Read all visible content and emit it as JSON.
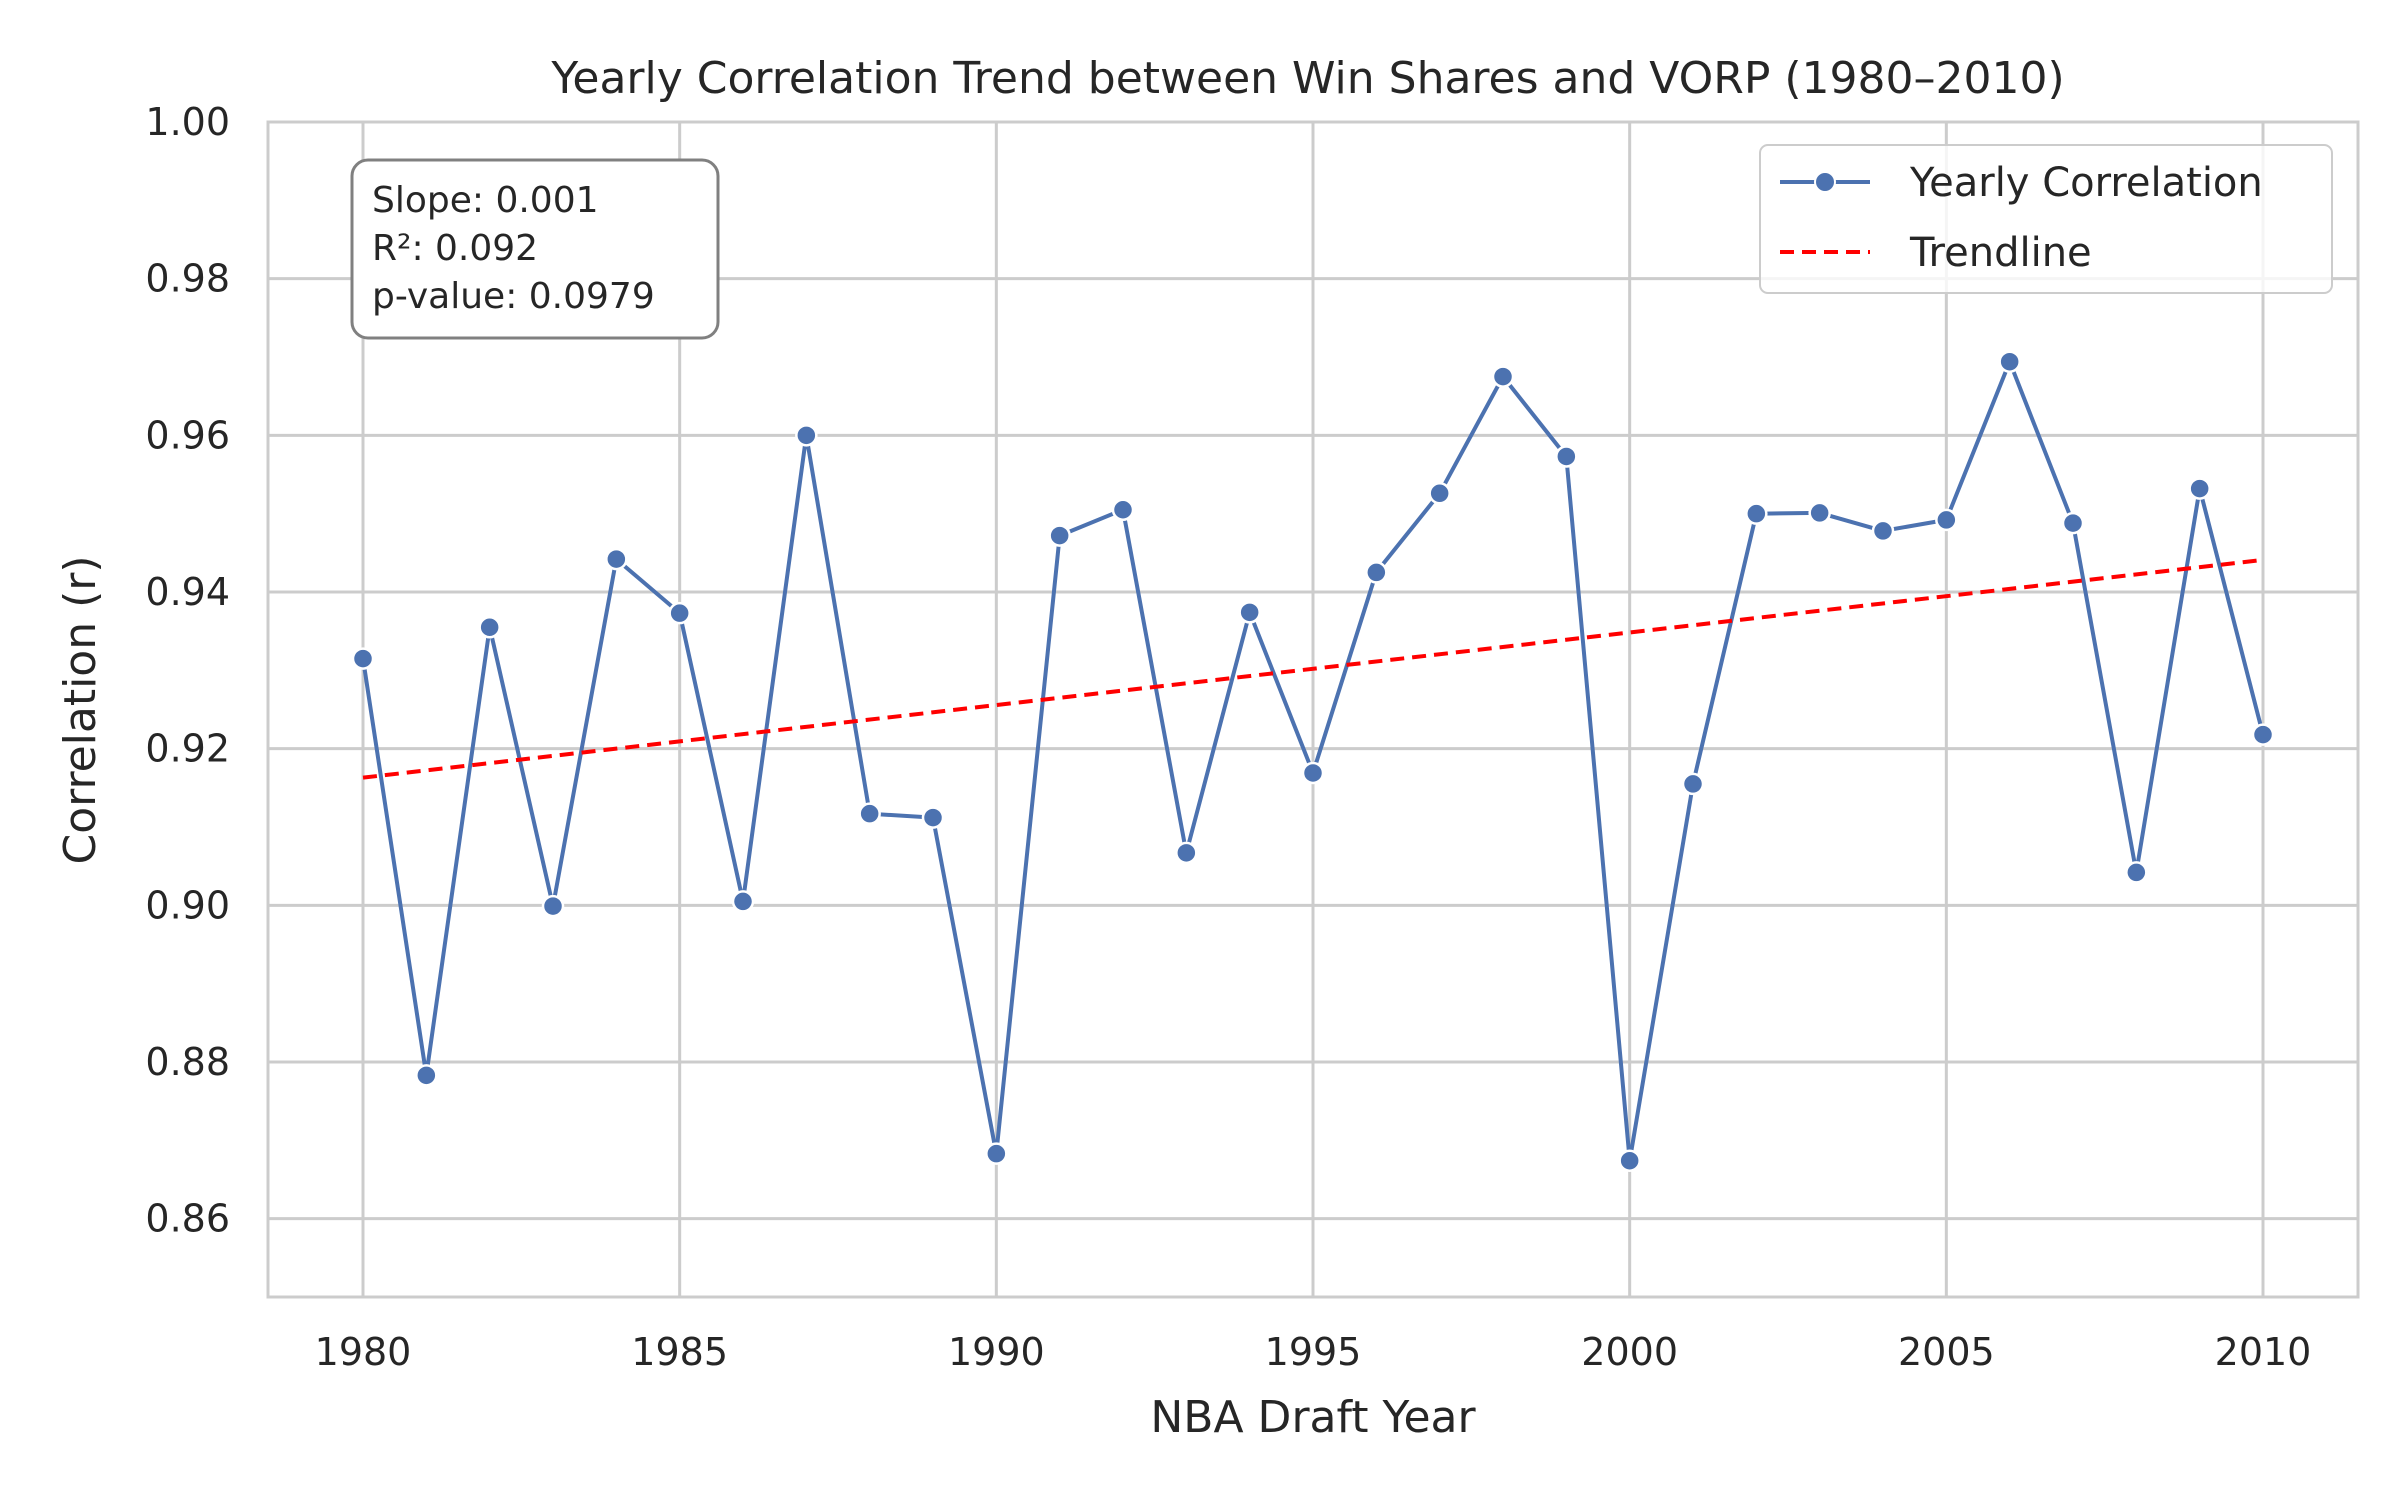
{
  "chart_data": {
    "type": "line",
    "title": "Yearly Correlation Trend between Win Shares and VORP (1980–2010)",
    "xlabel": "NBA Draft Year",
    "ylabel": "Correlation (r)",
    "xlim": [
      1978.5,
      2011.5
    ],
    "ylim": [
      0.85,
      1.0
    ],
    "x_ticks": [
      1980,
      1985,
      1990,
      1995,
      2000,
      2005,
      2010
    ],
    "y_ticks": [
      0.86,
      0.88,
      0.9,
      0.92,
      0.94,
      0.96,
      0.98,
      1.0
    ],
    "y_tick_labels": [
      "0.86",
      "0.88",
      "0.90",
      "0.92",
      "0.94",
      "0.96",
      "0.98",
      "1.00"
    ],
    "grid": true,
    "legend_position": "top-right",
    "series": [
      {
        "name": "Yearly Correlation",
        "color": "#4c72b0",
        "style": "solid-with-markers",
        "x": [
          1980,
          1981,
          1982,
          1983,
          1984,
          1985,
          1986,
          1987,
          1988,
          1989,
          1990,
          1991,
          1992,
          1993,
          1994,
          1995,
          1996,
          1997,
          1998,
          1999,
          2000,
          2001,
          2002,
          2003,
          2004,
          2005,
          2006,
          2007,
          2008,
          2009,
          2010
        ],
        "y": [
          0.9315,
          0.8783,
          0.9355,
          0.8999,
          0.9442,
          0.9373,
          0.9005,
          0.96,
          0.9117,
          0.9112,
          0.8683,
          0.9472,
          0.9505,
          0.9067,
          0.9374,
          0.9169,
          0.9425,
          0.9526,
          0.9675,
          0.9573,
          0.8674,
          0.9155,
          0.95,
          0.9501,
          0.9478,
          0.9492,
          0.9694,
          0.9488,
          0.9042,
          0.9532,
          0.9218
        ]
      },
      {
        "name": "Trendline",
        "color": "#ff0000",
        "style": "dashed",
        "x": [
          1980,
          2010
        ],
        "y": [
          0.9163,
          0.9441
        ]
      }
    ],
    "annotation": {
      "lines": [
        "Slope: 0.001",
        "R²: 0.092",
        "p-value: 0.0979"
      ]
    }
  }
}
